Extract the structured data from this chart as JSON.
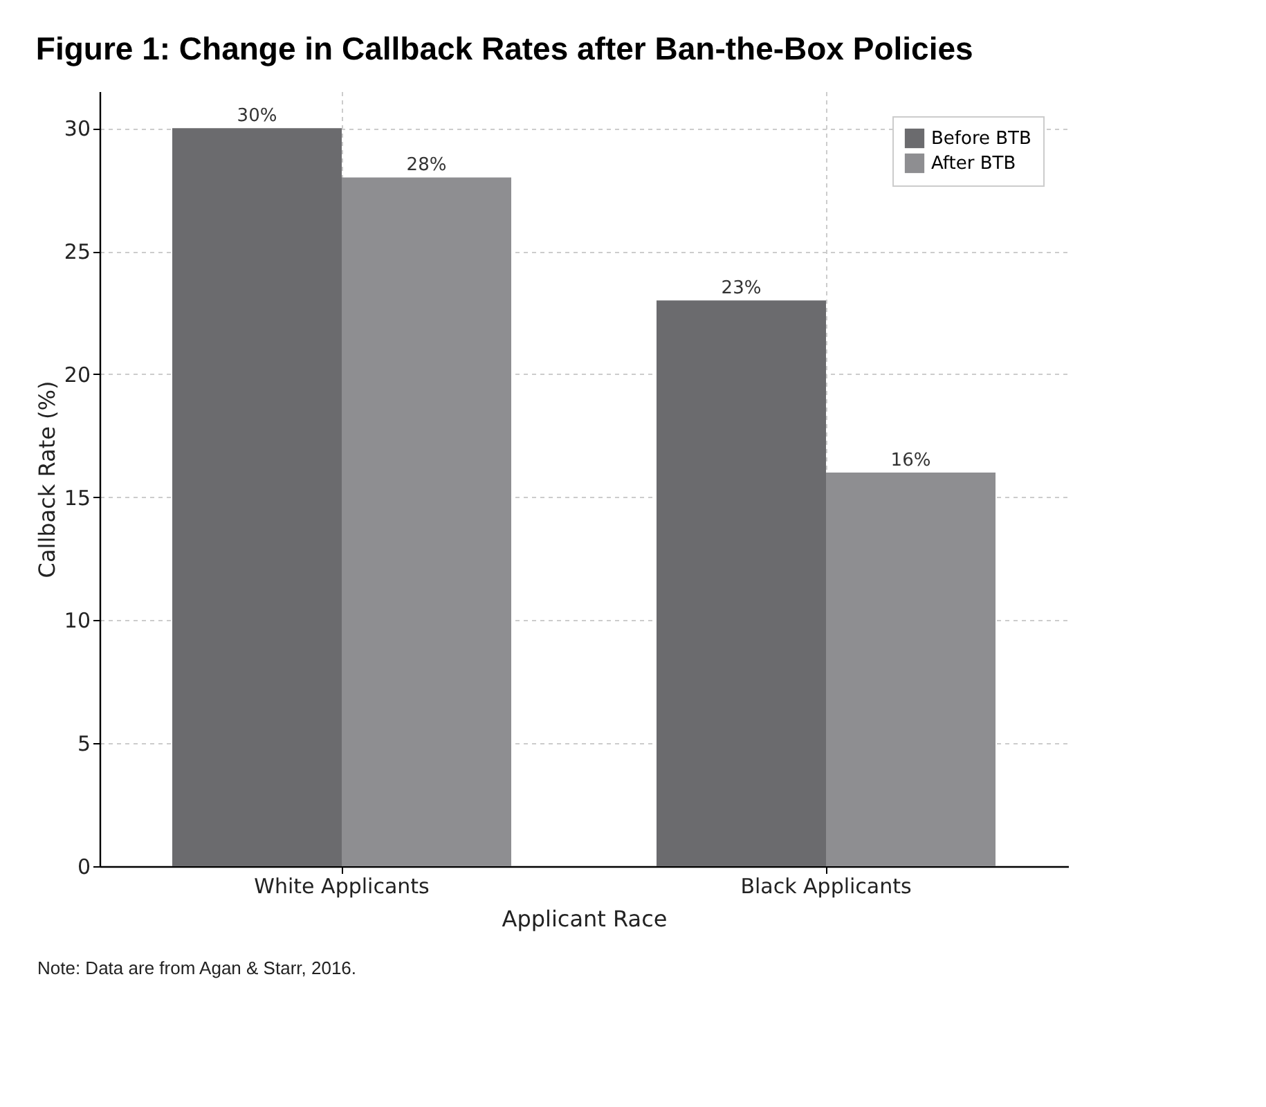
{
  "chart_data": {
    "type": "bar",
    "title": "Figure 1:  Change in Callback Rates after Ban-the-Box Policies",
    "xlabel": "Applicant Race",
    "ylabel": "Callback Rate (%)",
    "categories": [
      "White Applicants",
      "Black Applicants"
    ],
    "series": [
      {
        "name": "Before BTB",
        "color": "#6b6b6e",
        "values": [
          30,
          23
        ],
        "value_labels": [
          "30%",
          "23%"
        ]
      },
      {
        "name": "After BTB",
        "color": "#8e8e91",
        "values": [
          28,
          16
        ],
        "value_labels": [
          "28%",
          "16%"
        ]
      }
    ],
    "ylim": [
      0,
      31.5
    ],
    "yticks": [
      0,
      5,
      10,
      15,
      20,
      25,
      30
    ],
    "grid": true,
    "legend": "top right",
    "annotations": [
      "Note: Data are from Agan & Starr, 2016."
    ]
  }
}
